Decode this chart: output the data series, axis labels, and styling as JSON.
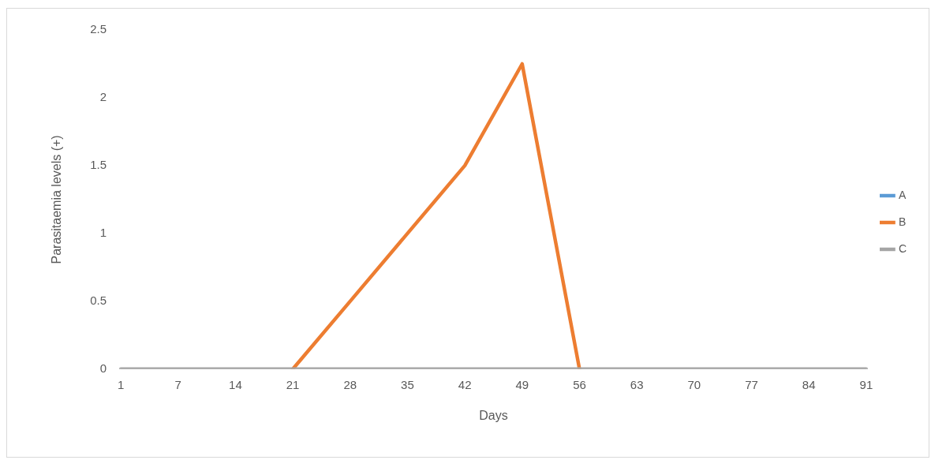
{
  "chart_data": {
    "type": "line",
    "xlabel": "Days",
    "ylabel": "Parasitaemia levels (+)",
    "categories": [
      "1",
      "7",
      "14",
      "21",
      "28",
      "35",
      "42",
      "49",
      "56",
      "63",
      "70",
      "77",
      "84",
      "91"
    ],
    "series": [
      {
        "name": "A",
        "color": "#5b9bd5",
        "values": [
          null,
          null,
          null,
          null,
          null,
          null,
          null,
          null,
          null,
          null,
          null,
          null,
          null,
          null
        ]
      },
      {
        "name": "B",
        "color": "#ed7d31",
        "values": [
          null,
          null,
          null,
          0,
          0.5,
          1,
          1.5,
          2.25,
          0,
          null,
          null,
          null,
          null,
          null
        ]
      },
      {
        "name": "C",
        "color": "#a5a5a5",
        "values": [
          0,
          0,
          0,
          0,
          0,
          0,
          0,
          0,
          0,
          0,
          0,
          0,
          0,
          0
        ]
      }
    ],
    "ylim": [
      0,
      2.5
    ],
    "yticks": [
      0,
      0.5,
      1,
      1.5,
      2,
      2.5
    ],
    "grid": false,
    "legend": "right",
    "marker": "none",
    "line_style": "solid"
  }
}
